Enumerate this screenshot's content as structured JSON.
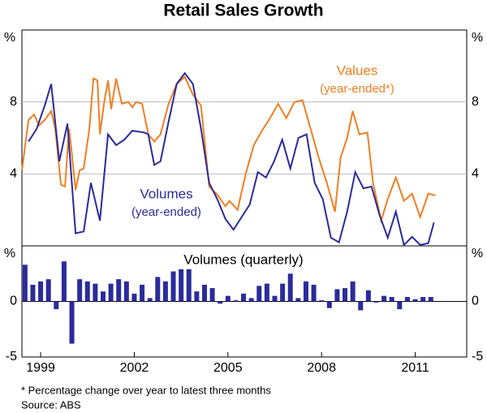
{
  "title": "Retail Sales Growth",
  "notes": [
    "*    Percentage change over year to latest three months",
    "Source: ABS"
  ],
  "chart_data": [
    {
      "type": "line",
      "y_unit": "%",
      "ylim": [
        0,
        12
      ],
      "yticks": [
        4,
        8
      ],
      "xlim": [
        1998.9,
        2013.15
      ],
      "grid": true,
      "series": [
        {
          "name": "Values",
          "annotation": "(year-ended*)",
          "color": "#f07f22",
          "x": [
            1998.9,
            1999.11,
            1999.29,
            1999.45,
            1999.63,
            1999.84,
            1999.97,
            2000.15,
            2000.28,
            2000.41,
            2000.49,
            2000.62,
            2000.75,
            2000.88,
            2001.06,
            2001.19,
            2001.32,
            2001.4,
            2001.53,
            2001.66,
            2001.76,
            2001.92,
            2002.1,
            2002.31,
            2002.44,
            2002.56,
            2002.75,
            2002.95,
            2003.14,
            2003.34,
            2003.6,
            2003.86,
            2004.12,
            2004.38,
            2004.64,
            2004.9,
            2005.16,
            2005.42,
            2005.55,
            2005.81,
            2006.07,
            2006.33,
            2006.59,
            2006.85,
            2007.11,
            2007.37,
            2007.63,
            2007.89,
            2008.15,
            2008.41,
            2008.67,
            2008.93,
            2009.11,
            2009.32,
            2009.5,
            2009.71,
            2009.97,
            2010.15,
            2010.41,
            2010.62,
            2010.88,
            2011.14,
            2011.4,
            2011.66,
            2011.92,
            2012.15
          ],
          "values": [
            4.2,
            7.0,
            7.3,
            6.7,
            7.0,
            7.5,
            6.5,
            3.4,
            3.3,
            6.5,
            5.3,
            3.1,
            4.2,
            4.3,
            6.5,
            9.3,
            9.2,
            6.2,
            7.9,
            9.2,
            7.6,
            9.3,
            7.9,
            8.0,
            7.7,
            8.0,
            7.9,
            6.2,
            5.8,
            6.2,
            7.9,
            9.0,
            9.4,
            8.4,
            7.8,
            3.3,
            2.85,
            2.2,
            2.5,
            2.0,
            4.0,
            5.6,
            6.4,
            7.1,
            7.9,
            7.1,
            8.0,
            8.1,
            6.5,
            4.9,
            3.5,
            1.9,
            4.9,
            6.0,
            7.5,
            6.2,
            6.3,
            3.5,
            1.4,
            2.6,
            3.8,
            2.5,
            2.9,
            1.6,
            2.9,
            2.8
          ]
        },
        {
          "name": "Volumes",
          "annotation": "(year-ended)",
          "color": "#2b2b9b",
          "x": [
            1999.11,
            1999.37,
            1999.63,
            1999.84,
            2000.1,
            2000.36,
            2000.62,
            2000.88,
            2001.11,
            2001.4,
            2001.66,
            2001.92,
            2002.18,
            2002.44,
            2002.82,
            2002.95,
            2003.14,
            2003.34,
            2003.6,
            2003.86,
            2004.12,
            2004.38,
            2004.64,
            2004.9,
            2005.16,
            2005.42,
            2005.68,
            2005.94,
            2006.2,
            2006.46,
            2006.72,
            2006.98,
            2007.24,
            2007.5,
            2007.76,
            2008.02,
            2008.28,
            2008.54,
            2008.8,
            2009.06,
            2009.32,
            2009.58,
            2009.84,
            2010.1,
            2010.36,
            2010.62,
            2010.88,
            2011.14,
            2011.4,
            2011.66,
            2011.92,
            2012.1
          ],
          "values": [
            5.8,
            6.5,
            7.8,
            9.0,
            4.7,
            6.8,
            0.7,
            0.8,
            3.5,
            1.4,
            6.2,
            5.6,
            5.9,
            6.4,
            6.3,
            6.2,
            4.5,
            4.7,
            6.9,
            9.0,
            9.6,
            9.0,
            6.5,
            3.5,
            2.6,
            1.5,
            0.9,
            1.6,
            2.3,
            4.1,
            3.8,
            4.7,
            5.9,
            4.3,
            6.0,
            6.2,
            3.5,
            2.6,
            0.45,
            0.2,
            1.9,
            4.1,
            3.2,
            3.3,
            1.7,
            0.45,
            1.9,
            0.05,
            0.5,
            0.05,
            0.15,
            1.3
          ]
        }
      ]
    },
    {
      "type": "bar",
      "title": "Volumes (quarterly)",
      "y_unit": "%",
      "ylim": [
        -5,
        5
      ],
      "yticks": [
        -5,
        0
      ],
      "xlim": [
        1998.9,
        2013.15
      ],
      "color": "#2b2b9b",
      "x": [
        1999,
        1999.25,
        1999.5,
        1999.75,
        2000,
        2000.25,
        2000.5,
        2000.75,
        2001,
        2001.25,
        2001.5,
        2001.75,
        2002,
        2002.25,
        2002.5,
        2002.75,
        2003,
        2003.25,
        2003.5,
        2003.75,
        2004,
        2004.25,
        2004.5,
        2004.75,
        2005,
        2005.25,
        2005.5,
        2005.75,
        2006,
        2006.25,
        2006.5,
        2006.75,
        2007,
        2007.25,
        2007.5,
        2007.75,
        2008,
        2008.25,
        2008.5,
        2008.75,
        2009,
        2009.25,
        2009.5,
        2009.75,
        2010,
        2010.25,
        2010.5,
        2010.75,
        2011,
        2011.25,
        2011.5,
        2011.75,
        2012
      ],
      "values": [
        3.3,
        1.5,
        1.8,
        2.0,
        -0.7,
        3.6,
        -3.8,
        2.0,
        1.8,
        1.6,
        0.9,
        1.6,
        2.0,
        1.8,
        0.7,
        1.5,
        0.3,
        2.2,
        1.8,
        2.7,
        2.9,
        2.9,
        0.9,
        1.5,
        1.2,
        -0.2,
        0.5,
        0.1,
        0.7,
        0.3,
        1.4,
        1.6,
        0.5,
        1.6,
        2.5,
        0.3,
        1.8,
        1.5,
        0.1,
        -0.6,
        1.1,
        1.2,
        1.8,
        -0.8,
        1.0,
        -0.1,
        0.5,
        0.4,
        -0.7,
        0.4,
        0.2,
        0.4,
        0.4
      ],
      "xticks": [
        {
          "value": 1999.5,
          "label": "1999"
        },
        {
          "value": 2002.5,
          "label": "2002"
        },
        {
          "value": 2005.5,
          "label": "2005"
        },
        {
          "value": 2008.5,
          "label": "2008"
        },
        {
          "value": 2011.5,
          "label": "2011"
        }
      ]
    }
  ]
}
